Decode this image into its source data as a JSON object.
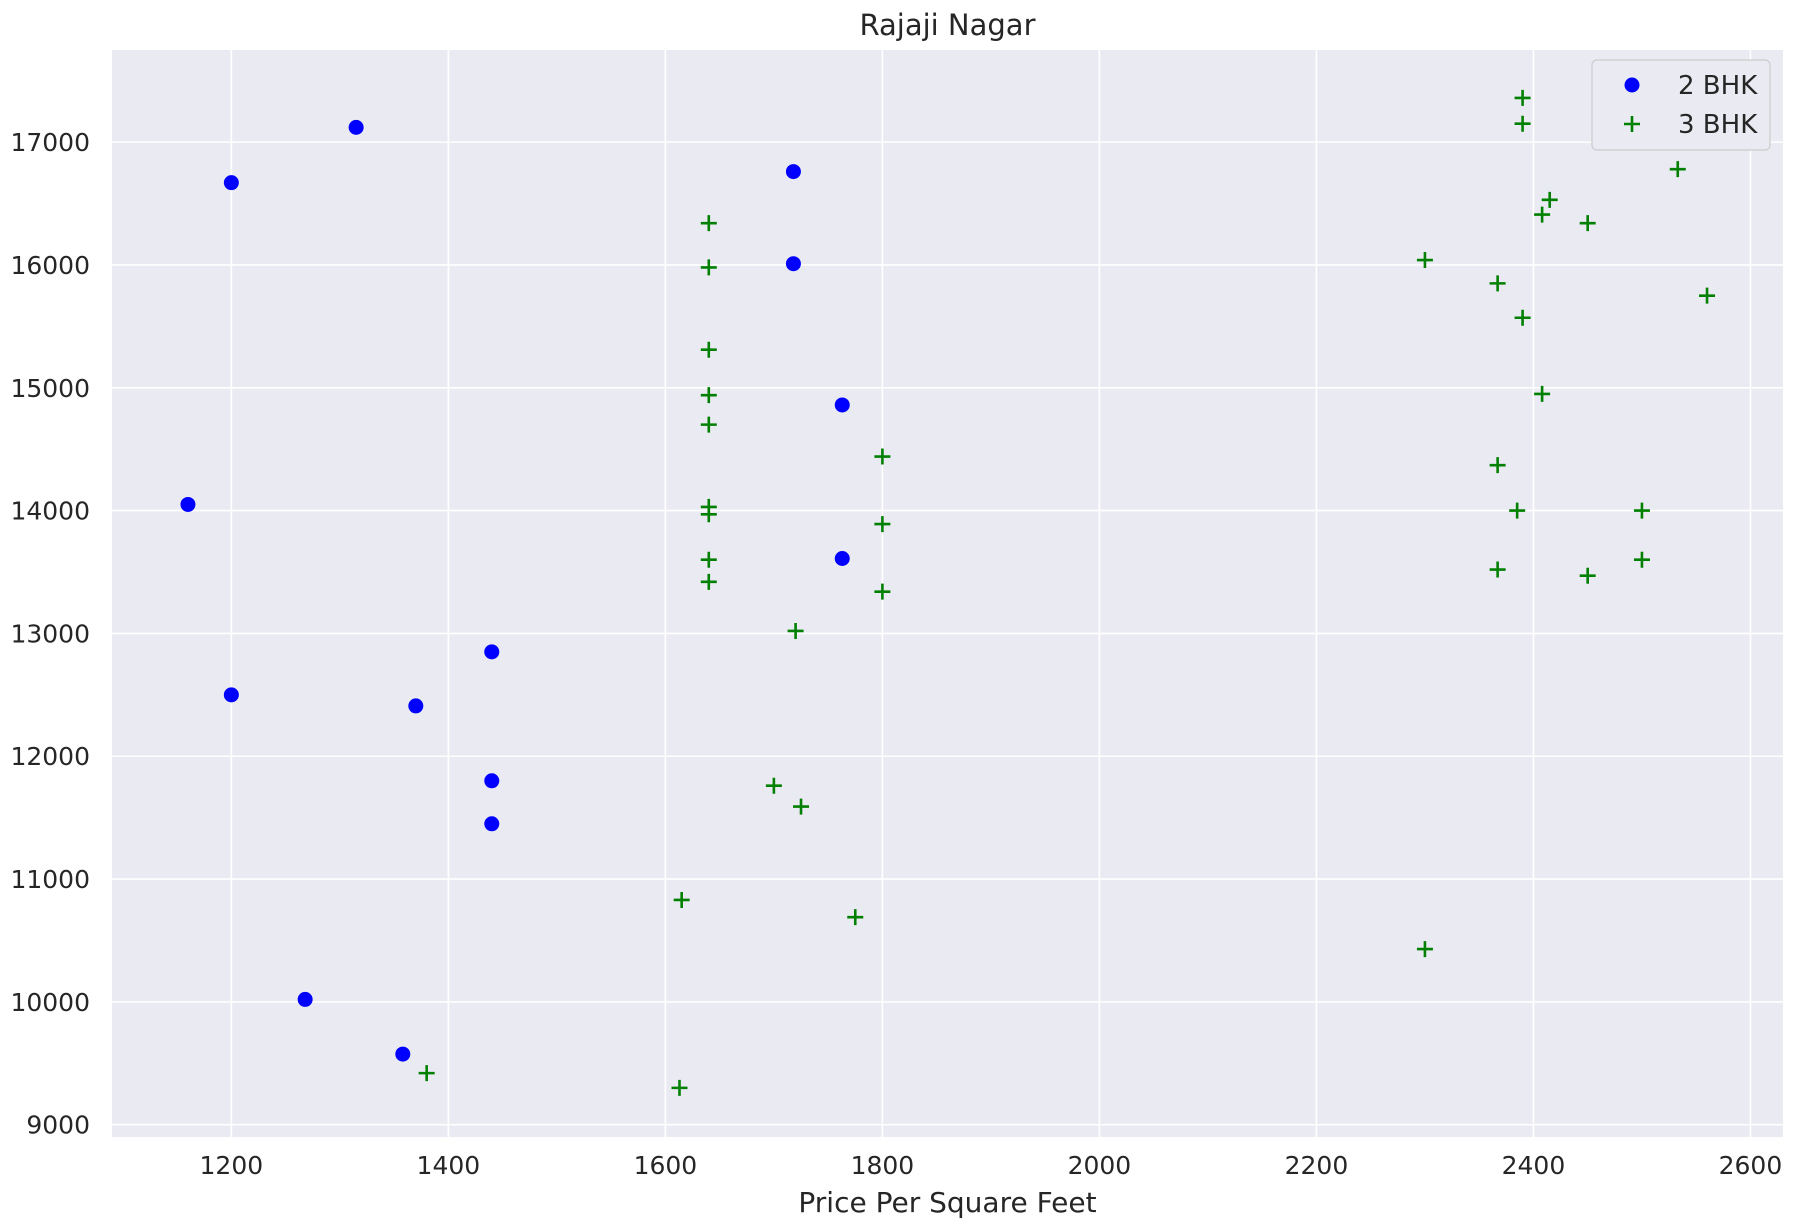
{
  "chart_data": {
    "type": "scatter",
    "title": "Rajaji Nagar",
    "xlabel": "Price Per Square Feet",
    "ylabel": "",
    "xlim": [
      1090,
      2630
    ],
    "ylim": [
      8900,
      17750
    ],
    "xticks": [
      1200,
      1400,
      1600,
      1800,
      2000,
      2200,
      2400,
      2600
    ],
    "yticks": [
      9000,
      10000,
      11000,
      12000,
      13000,
      14000,
      15000,
      16000,
      17000
    ],
    "grid": true,
    "legend_position": "top-right",
    "background": "#eaeaf2",
    "series": [
      {
        "name": "2 BHK",
        "marker": "circle",
        "color": "#0000ff",
        "points": [
          [
            1160,
            14050
          ],
          [
            1200,
            16670
          ],
          [
            1315,
            17120
          ],
          [
            1200,
            12500
          ],
          [
            1268,
            10020
          ],
          [
            1358,
            9575
          ],
          [
            1370,
            12410
          ],
          [
            1440,
            12850
          ],
          [
            1440,
            11800
          ],
          [
            1440,
            11450
          ],
          [
            1718,
            16760
          ],
          [
            1718,
            16010
          ],
          [
            1763,
            14860
          ],
          [
            1763,
            13610
          ]
        ]
      },
      {
        "name": "3 BHK",
        "marker": "plus",
        "color": "#008000",
        "points": [
          [
            1380,
            9420
          ],
          [
            1613,
            9300
          ],
          [
            1615,
            10830
          ],
          [
            1640,
            16340
          ],
          [
            1640,
            15980
          ],
          [
            1640,
            15310
          ],
          [
            1640,
            14940
          ],
          [
            1640,
            14700
          ],
          [
            1640,
            14030
          ],
          [
            1640,
            13970
          ],
          [
            1640,
            13600
          ],
          [
            1640,
            13420
          ],
          [
            1700,
            11760
          ],
          [
            1720,
            13020
          ],
          [
            1725,
            11590
          ],
          [
            1775,
            10690
          ],
          [
            1800,
            14440
          ],
          [
            1800,
            13890
          ],
          [
            1800,
            13340
          ],
          [
            2300,
            16040
          ],
          [
            2300,
            10430
          ],
          [
            2367,
            15850
          ],
          [
            2367,
            14370
          ],
          [
            2367,
            13520
          ],
          [
            2385,
            14000
          ],
          [
            2390,
            17360
          ],
          [
            2390,
            17150
          ],
          [
            2390,
            15570
          ],
          [
            2408,
            16410
          ],
          [
            2408,
            14950
          ],
          [
            2415,
            16530
          ],
          [
            2450,
            16340
          ],
          [
            2450,
            13470
          ],
          [
            2500,
            14000
          ],
          [
            2500,
            13600
          ],
          [
            2533,
            16780
          ],
          [
            2560,
            15750
          ]
        ]
      }
    ]
  }
}
